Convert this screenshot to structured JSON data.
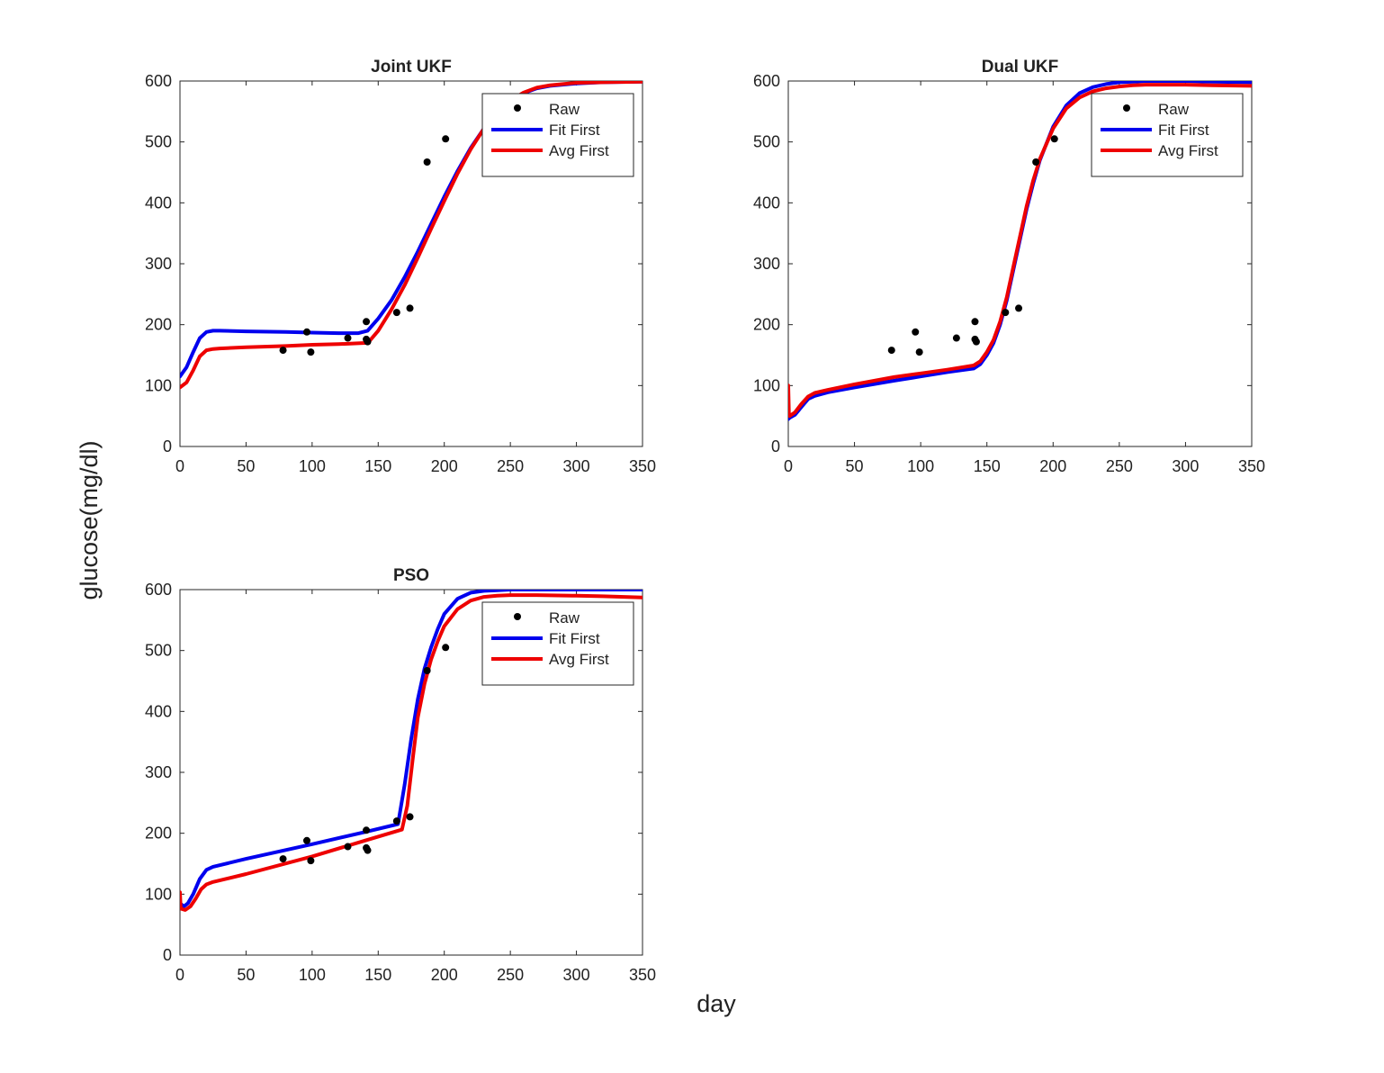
{
  "figure": {
    "ylabel": "glucose(mg/dl)",
    "xlabel": "day"
  },
  "colors": {
    "raw": "#000000",
    "fit_first": "#0000ee",
    "avg_first": "#ee0000",
    "axes": "#262626"
  },
  "chart_data": [
    {
      "type": "line",
      "title": "Joint UKF",
      "xlim": [
        0,
        350
      ],
      "ylim": [
        0,
        600
      ],
      "xticks": [
        0,
        50,
        100,
        150,
        200,
        250,
        300,
        350
      ],
      "yticks": [
        0,
        100,
        200,
        300,
        400,
        500,
        600
      ],
      "legend_position": "top-right",
      "legend": [
        "Raw",
        "Fit First",
        "Avg First"
      ],
      "raw": {
        "name": "Raw",
        "x": [
          78,
          96,
          99,
          127,
          141,
          141,
          142,
          164,
          174,
          187,
          201
        ],
        "y": [
          158,
          188,
          155,
          178,
          205,
          176,
          172,
          220,
          227,
          467,
          505
        ]
      },
      "series": [
        {
          "name": "Fit First",
          "x": [
            0,
            5,
            10,
            15,
            20,
            25,
            30,
            50,
            80,
            100,
            120,
            135,
            142,
            150,
            160,
            170,
            180,
            190,
            200,
            210,
            220,
            230,
            240,
            250,
            260,
            270,
            280,
            300,
            320,
            350
          ],
          "y": [
            115,
            130,
            155,
            178,
            188,
            190,
            190,
            189,
            188,
            187,
            186,
            186,
            190,
            210,
            240,
            278,
            320,
            365,
            410,
            452,
            490,
            522,
            548,
            567,
            580,
            588,
            592,
            596,
            598,
            599
          ]
        },
        {
          "name": "Avg First",
          "x": [
            0,
            5,
            10,
            15,
            20,
            25,
            30,
            50,
            80,
            100,
            120,
            140,
            143,
            150,
            160,
            170,
            180,
            190,
            200,
            210,
            220,
            230,
            240,
            250,
            260,
            270,
            280,
            300,
            320,
            350
          ],
          "y": [
            97,
            105,
            125,
            148,
            158,
            160,
            161,
            163,
            165,
            167,
            168,
            170,
            172,
            190,
            225,
            265,
            310,
            357,
            403,
            448,
            488,
            522,
            549,
            568,
            581,
            589,
            593,
            597,
            598,
            599
          ]
        }
      ]
    },
    {
      "type": "line",
      "title": "Dual UKF",
      "xlim": [
        0,
        350
      ],
      "ylim": [
        0,
        600
      ],
      "xticks": [
        0,
        50,
        100,
        150,
        200,
        250,
        300,
        350
      ],
      "yticks": [
        0,
        100,
        200,
        300,
        400,
        500,
        600
      ],
      "legend_position": "top-right",
      "legend": [
        "Raw",
        "Fit First",
        "Avg First"
      ],
      "raw": {
        "name": "Raw",
        "x": [
          78,
          96,
          99,
          127,
          141,
          141,
          142,
          164,
          174,
          187,
          201
        ],
        "y": [
          158,
          188,
          155,
          178,
          205,
          176,
          172,
          220,
          227,
          467,
          505
        ]
      },
      "series": [
        {
          "name": "Fit First",
          "x": [
            0,
            1,
            5,
            10,
            15,
            20,
            30,
            50,
            80,
            100,
            120,
            140,
            145,
            150,
            155,
            160,
            165,
            170,
            175,
            180,
            185,
            190,
            200,
            210,
            220,
            230,
            240,
            250,
            260,
            270,
            280,
            300,
            320,
            350
          ],
          "y": [
            45,
            47,
            52,
            65,
            78,
            83,
            89,
            97,
            108,
            115,
            122,
            128,
            135,
            150,
            170,
            200,
            240,
            290,
            340,
            390,
            432,
            470,
            525,
            560,
            580,
            590,
            595,
            598,
            599,
            600,
            600,
            600,
            599,
            598
          ]
        },
        {
          "name": "Avg First",
          "x": [
            0,
            0.5,
            1,
            5,
            10,
            15,
            20,
            30,
            50,
            80,
            100,
            120,
            140,
            145,
            150,
            155,
            160,
            165,
            170,
            175,
            180,
            185,
            190,
            200,
            210,
            220,
            230,
            240,
            250,
            260,
            270,
            280,
            300,
            320,
            350
          ],
          "y": [
            100,
            55,
            50,
            56,
            70,
            82,
            88,
            93,
            102,
            114,
            120,
            126,
            133,
            140,
            155,
            175,
            205,
            245,
            295,
            345,
            395,
            437,
            472,
            522,
            555,
            573,
            583,
            588,
            591,
            593,
            594,
            594,
            594,
            593,
            592
          ]
        }
      ]
    },
    {
      "type": "line",
      "title": "PSO",
      "xlim": [
        0,
        350
      ],
      "ylim": [
        0,
        600
      ],
      "xticks": [
        0,
        50,
        100,
        150,
        200,
        250,
        300,
        350
      ],
      "yticks": [
        0,
        100,
        200,
        300,
        400,
        500,
        600
      ],
      "legend_position": "top-right",
      "legend": [
        "Raw",
        "Fit First",
        "Avg First"
      ],
      "raw": {
        "name": "Raw",
        "x": [
          78,
          96,
          99,
          127,
          141,
          141,
          142,
          164,
          174,
          187,
          201
        ],
        "y": [
          158,
          188,
          155,
          178,
          205,
          176,
          172,
          220,
          227,
          467,
          505
        ]
      },
      "series": [
        {
          "name": "Fit First",
          "x": [
            0,
            3,
            6,
            10,
            15,
            20,
            25,
            50,
            100,
            140,
            165,
            170,
            175,
            180,
            185,
            190,
            195,
            200,
            210,
            220,
            230,
            240,
            250,
            270,
            300,
            350
          ],
          "y": [
            85,
            80,
            85,
            100,
            125,
            140,
            145,
            158,
            182,
            202,
            215,
            280,
            355,
            420,
            470,
            505,
            535,
            560,
            585,
            595,
            598,
            599,
            600,
            600,
            600,
            600
          ]
        },
        {
          "name": "Avg First",
          "x": [
            0,
            0.5,
            1,
            4,
            8,
            12,
            16,
            20,
            25,
            50,
            100,
            140,
            168,
            172,
            176,
            180,
            185,
            190,
            195,
            200,
            210,
            220,
            230,
            240,
            250,
            270,
            300,
            320,
            350
          ],
          "y": [
            103,
            80,
            76,
            74,
            80,
            93,
            108,
            116,
            120,
            133,
            162,
            188,
            206,
            245,
            320,
            390,
            445,
            485,
            515,
            540,
            568,
            582,
            588,
            590,
            591,
            591,
            590,
            589,
            587
          ]
        }
      ]
    }
  ]
}
